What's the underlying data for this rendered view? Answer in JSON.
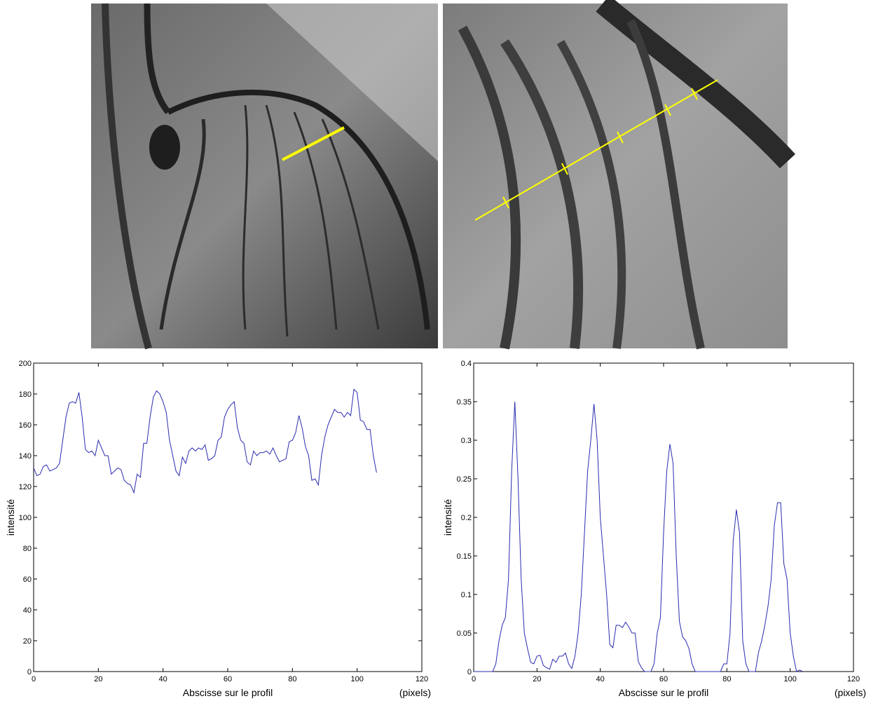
{
  "chart_data": [
    {
      "type": "line",
      "color": "#2b2bb0",
      "x_label": "Abscisse sur le profil",
      "x_unit": "(pixels)",
      "y_label": "intensité",
      "xlim": [
        0,
        120
      ],
      "ylim": [
        0,
        200
      ],
      "xticks": [
        0,
        20,
        40,
        60,
        80,
        100,
        120
      ],
      "yticks": [
        0,
        20,
        40,
        60,
        80,
        100,
        120,
        140,
        160,
        180,
        200
      ],
      "x": [
        0,
        1,
        2,
        3,
        4,
        5,
        6,
        7,
        8,
        9,
        10,
        11,
        12,
        13,
        14,
        15,
        16,
        17,
        18,
        19,
        20,
        21,
        22,
        23,
        24,
        25,
        26,
        27,
        28,
        29,
        30,
        31,
        32,
        33,
        34,
        35,
        36,
        37,
        38,
        39,
        40,
        41,
        42,
        43,
        44,
        45,
        46,
        47,
        48,
        49,
        50,
        51,
        52,
        53,
        54,
        55,
        56,
        57,
        58,
        59,
        60,
        61,
        62,
        63,
        64,
        65,
        66,
        67,
        68,
        69,
        70,
        71,
        72,
        73,
        74,
        75,
        76,
        77,
        78,
        79,
        80,
        81,
        82,
        83,
        84,
        85,
        86,
        87,
        88,
        89,
        90,
        91,
        92,
        93,
        94,
        95,
        96,
        97,
        98,
        99,
        100,
        101,
        102,
        103,
        104,
        105,
        106
      ],
      "values": [
        132,
        127,
        128,
        133,
        134,
        130,
        131,
        132,
        135,
        150,
        165,
        174,
        175,
        174,
        181,
        165,
        144,
        142,
        143,
        140,
        150,
        145,
        140,
        140,
        128,
        130,
        132,
        131,
        124,
        122,
        121,
        116,
        128,
        126,
        148,
        148,
        165,
        178,
        182,
        180,
        175,
        168,
        150,
        140,
        130,
        127,
        139,
        135,
        143,
        145,
        143,
        145,
        144,
        147,
        137,
        138,
        140,
        150,
        152,
        165,
        170,
        173,
        175,
        158,
        150,
        148,
        136,
        134,
        143,
        140,
        142,
        142,
        143,
        141,
        145,
        140,
        136,
        137,
        138,
        149,
        150,
        155,
        166,
        158,
        146,
        140,
        124,
        125,
        121,
        140,
        152,
        160,
        165,
        170,
        168,
        168,
        165,
        168,
        166,
        183,
        181,
        163,
        162,
        157,
        157,
        140,
        129
      ]
    },
    {
      "type": "line",
      "color": "#2b2bb0",
      "x_label": "Abscisse sur le profil",
      "x_unit": "(pixels)",
      "y_label": "intensité",
      "xlim": [
        0,
        120
      ],
      "ylim": [
        0,
        0.4
      ],
      "xticks": [
        0,
        20,
        40,
        60,
        80,
        100,
        120
      ],
      "yticks": [
        0,
        0.05,
        0.1,
        0.15,
        0.2,
        0.25,
        0.3,
        0.35,
        0.4
      ],
      "x": [
        0,
        1,
        2,
        3,
        4,
        5,
        6,
        7,
        8,
        9,
        10,
        11,
        12,
        13,
        14,
        15,
        16,
        17,
        18,
        19,
        20,
        21,
        22,
        23,
        24,
        25,
        26,
        27,
        28,
        29,
        30,
        31,
        32,
        33,
        34,
        35,
        36,
        37,
        38,
        39,
        40,
        41,
        42,
        43,
        44,
        45,
        46,
        47,
        48,
        49,
        50,
        51,
        52,
        53,
        54,
        55,
        56,
        57,
        58,
        59,
        60,
        61,
        62,
        63,
        64,
        65,
        66,
        67,
        68,
        69,
        70,
        71,
        72,
        73,
        74,
        75,
        76,
        77,
        78,
        79,
        80,
        81,
        82,
        83,
        84,
        85,
        86,
        87,
        88,
        89,
        90,
        91,
        92,
        93,
        94,
        95,
        96,
        97,
        98,
        99,
        100,
        101,
        102,
        103,
        104
      ],
      "values": [
        0,
        0,
        0,
        0,
        0,
        0,
        0,
        0.01,
        0.04,
        0.06,
        0.07,
        0.12,
        0.26,
        0.35,
        0.25,
        0.12,
        0.05,
        0.03,
        0.012,
        0.01,
        0.02,
        0.021,
        0.008,
        0.005,
        0.003,
        0.016,
        0.012,
        0.02,
        0.02,
        0.024,
        0.01,
        0.004,
        0.02,
        0.05,
        0.1,
        0.18,
        0.26,
        0.3,
        0.347,
        0.3,
        0.2,
        0.15,
        0.1,
        0.035,
        0.031,
        0.06,
        0.06,
        0.057,
        0.064,
        0.058,
        0.05,
        0.05,
        0.013,
        0.005,
        0,
        0,
        0,
        0.01,
        0.05,
        0.07,
        0.18,
        0.26,
        0.295,
        0.27,
        0.15,
        0.065,
        0.045,
        0.04,
        0.03,
        0.01,
        0,
        0,
        0,
        0,
        0,
        0,
        0,
        0,
        0,
        0.01,
        0.01,
        0.05,
        0.17,
        0.21,
        0.18,
        0.04,
        0.01,
        0,
        0,
        0,
        0.025,
        0.04,
        0.06,
        0.085,
        0.12,
        0.19,
        0.219,
        0.219,
        0.14,
        0.12,
        0.05,
        0.02,
        0,
        0.002,
        0
      ]
    }
  ]
}
